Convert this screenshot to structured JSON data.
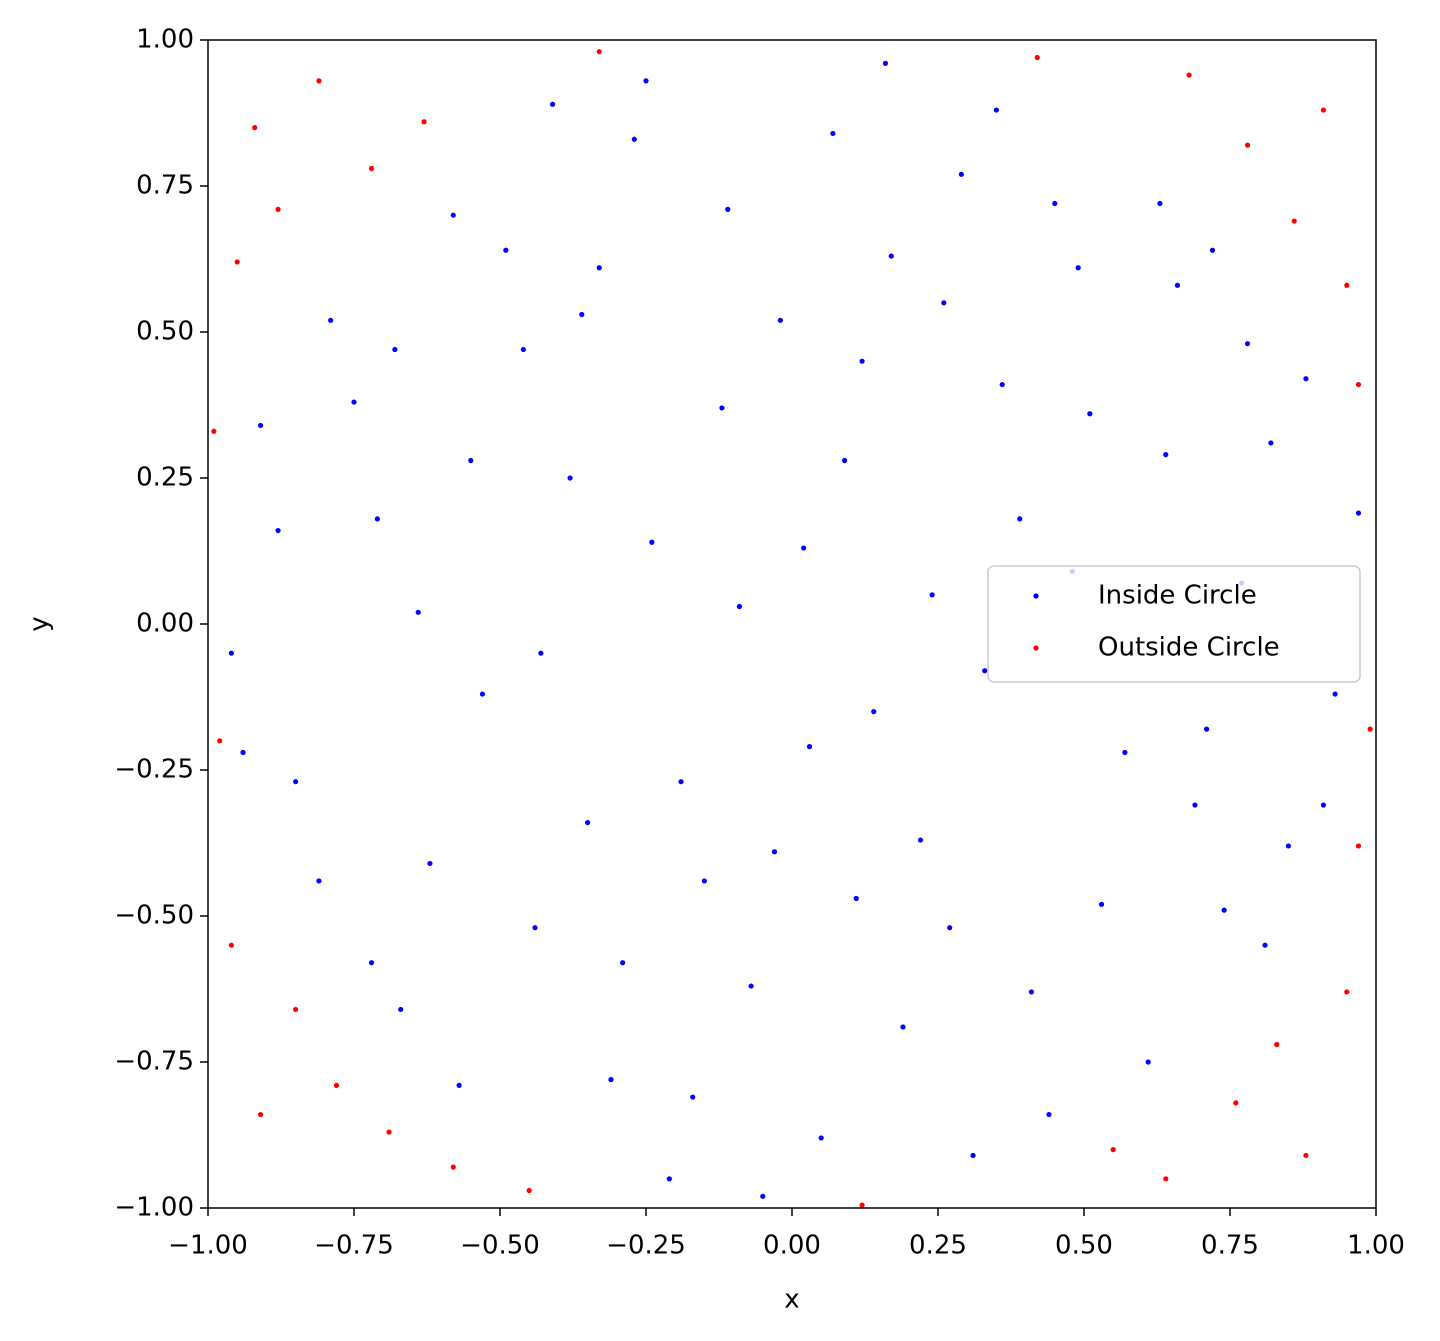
{
  "chart_data": {
    "type": "scatter",
    "xlabel": "x",
    "ylabel": "y",
    "legend": "center right",
    "xlim": [
      -1,
      1
    ],
    "ylim": [
      -1,
      1
    ],
    "xticks": [
      {
        "value": -1,
        "label": "−1.00"
      },
      {
        "value": -0.75,
        "label": "−0.75"
      },
      {
        "value": -0.5,
        "label": "−0.50"
      },
      {
        "value": -0.25,
        "label": "−0.25"
      },
      {
        "value": 0,
        "label": "0.00"
      },
      {
        "value": 0.25,
        "label": "0.25"
      },
      {
        "value": 0.5,
        "label": "0.50"
      },
      {
        "value": 0.75,
        "label": "0.75"
      },
      {
        "value": 1,
        "label": "1.00"
      }
    ],
    "yticks": [
      {
        "value": -1,
        "label": "−1.00"
      },
      {
        "value": -0.75,
        "label": "−0.75"
      },
      {
        "value": -0.5,
        "label": "−0.50"
      },
      {
        "value": -0.25,
        "label": "−0.25"
      },
      {
        "value": 0,
        "label": "0.00"
      },
      {
        "value": 0.25,
        "label": "0.25"
      },
      {
        "value": 0.5,
        "label": "0.50"
      },
      {
        "value": 0.75,
        "label": "0.75"
      },
      {
        "value": 1,
        "label": "1.00"
      }
    ],
    "series": [
      {
        "name": "Inside Circle",
        "color": "#0000ff",
        "x": [
          0.12,
          -0.33,
          0.57,
          -0.71,
          0.05,
          0.82,
          -0.44,
          0.29,
          -0.09,
          0.66,
          -0.58,
          0.41,
          -0.85,
          0.93,
          -0.21,
          0.16,
          -0.67,
          0.74,
          -0.38,
          0.48,
          -0.02,
          0.22,
          -0.91,
          0.35,
          -0.15,
          0.61,
          -0.53,
          0.88,
          -0.27,
          0.03,
          -0.79,
          0.51,
          -0.62,
          0.19,
          -0.46,
          0.77,
          -0.11,
          0.31,
          -0.96,
          0.69,
          -0.31,
          0.09,
          -0.72,
          0.45,
          -0.24,
          0.85,
          -0.55,
          0.26,
          -0.07,
          0.58,
          -0.88,
          0.14,
          -0.41,
          0.72,
          -0.19,
          0.39,
          -0.64,
          0.97,
          -0.35,
          0.07,
          0.53,
          -0.81,
          0.24,
          -0.49,
          0.64,
          -0.03,
          0.44,
          -0.75,
          0.17,
          -0.29,
          0.81,
          -0.12,
          0.33,
          -0.57,
          0.02,
          0.78,
          -0.94,
          0.27,
          -0.36,
          0.63,
          -0.17,
          0.49,
          -0.68,
          0.11,
          0.91,
          -0.43,
          0.36,
          -0.25,
          0.71,
          -0.05
        ],
        "y": [
          0.45,
          0.61,
          -0.22,
          0.18,
          -0.88,
          0.31,
          -0.52,
          0.77,
          0.03,
          0.58,
          0.7,
          -0.63,
          -0.27,
          -0.12,
          -0.95,
          0.96,
          -0.66,
          -0.49,
          0.25,
          0.09,
          0.52,
          -0.37,
          0.34,
          0.88,
          -0.44,
          -0.75,
          -0.12,
          0.42,
          0.83,
          -0.21,
          0.52,
          0.36,
          -0.41,
          -0.69,
          0.47,
          0.07,
          0.71,
          -0.91,
          -0.05,
          -0.31,
          -0.78,
          0.28,
          -0.58,
          0.72,
          0.14,
          -0.38,
          0.28,
          0.55,
          -0.62,
          -0.05,
          0.16,
          -0.15,
          0.89,
          0.64,
          -0.27,
          0.18,
          0.02,
          0.19,
          -0.34,
          0.84,
          -0.48,
          -0.44,
          0.05,
          0.64,
          0.29,
          -0.39,
          -0.84,
          0.38,
          0.63,
          -0.58,
          -0.55,
          0.37,
          -0.08,
          -0.79,
          0.13,
          0.48,
          -0.22,
          -0.52,
          0.53,
          0.72,
          -0.81,
          0.61,
          0.47,
          -0.47,
          -0.31,
          -0.05,
          0.41,
          0.93,
          -0.18,
          -0.98
        ]
      },
      {
        "name": "Outside Circle",
        "color": "#ff0000",
        "x": [
          -0.92,
          -0.81,
          -0.95,
          -0.72,
          -0.88,
          -0.63,
          0.91,
          0.78,
          0.95,
          0.68,
          0.86,
          0.97,
          -0.91,
          -0.78,
          -0.96,
          -0.69,
          -0.85,
          -0.58,
          0.88,
          0.76,
          0.95,
          0.64,
          0.83,
          0.97,
          -0.99,
          0.42,
          -0.33,
          0.12,
          -0.45,
          0.99,
          -0.98,
          0.55
        ],
        "y": [
          0.85,
          0.93,
          0.62,
          0.78,
          0.71,
          0.86,
          0.88,
          0.82,
          0.58,
          0.94,
          0.69,
          0.41,
          -0.84,
          -0.79,
          -0.55,
          -0.87,
          -0.66,
          -0.93,
          -0.91,
          -0.82,
          -0.63,
          -0.95,
          -0.72,
          -0.38,
          0.33,
          0.97,
          0.98,
          -0.995,
          -0.97,
          -0.18,
          -0.2,
          -0.9
        ]
      }
    ]
  }
}
